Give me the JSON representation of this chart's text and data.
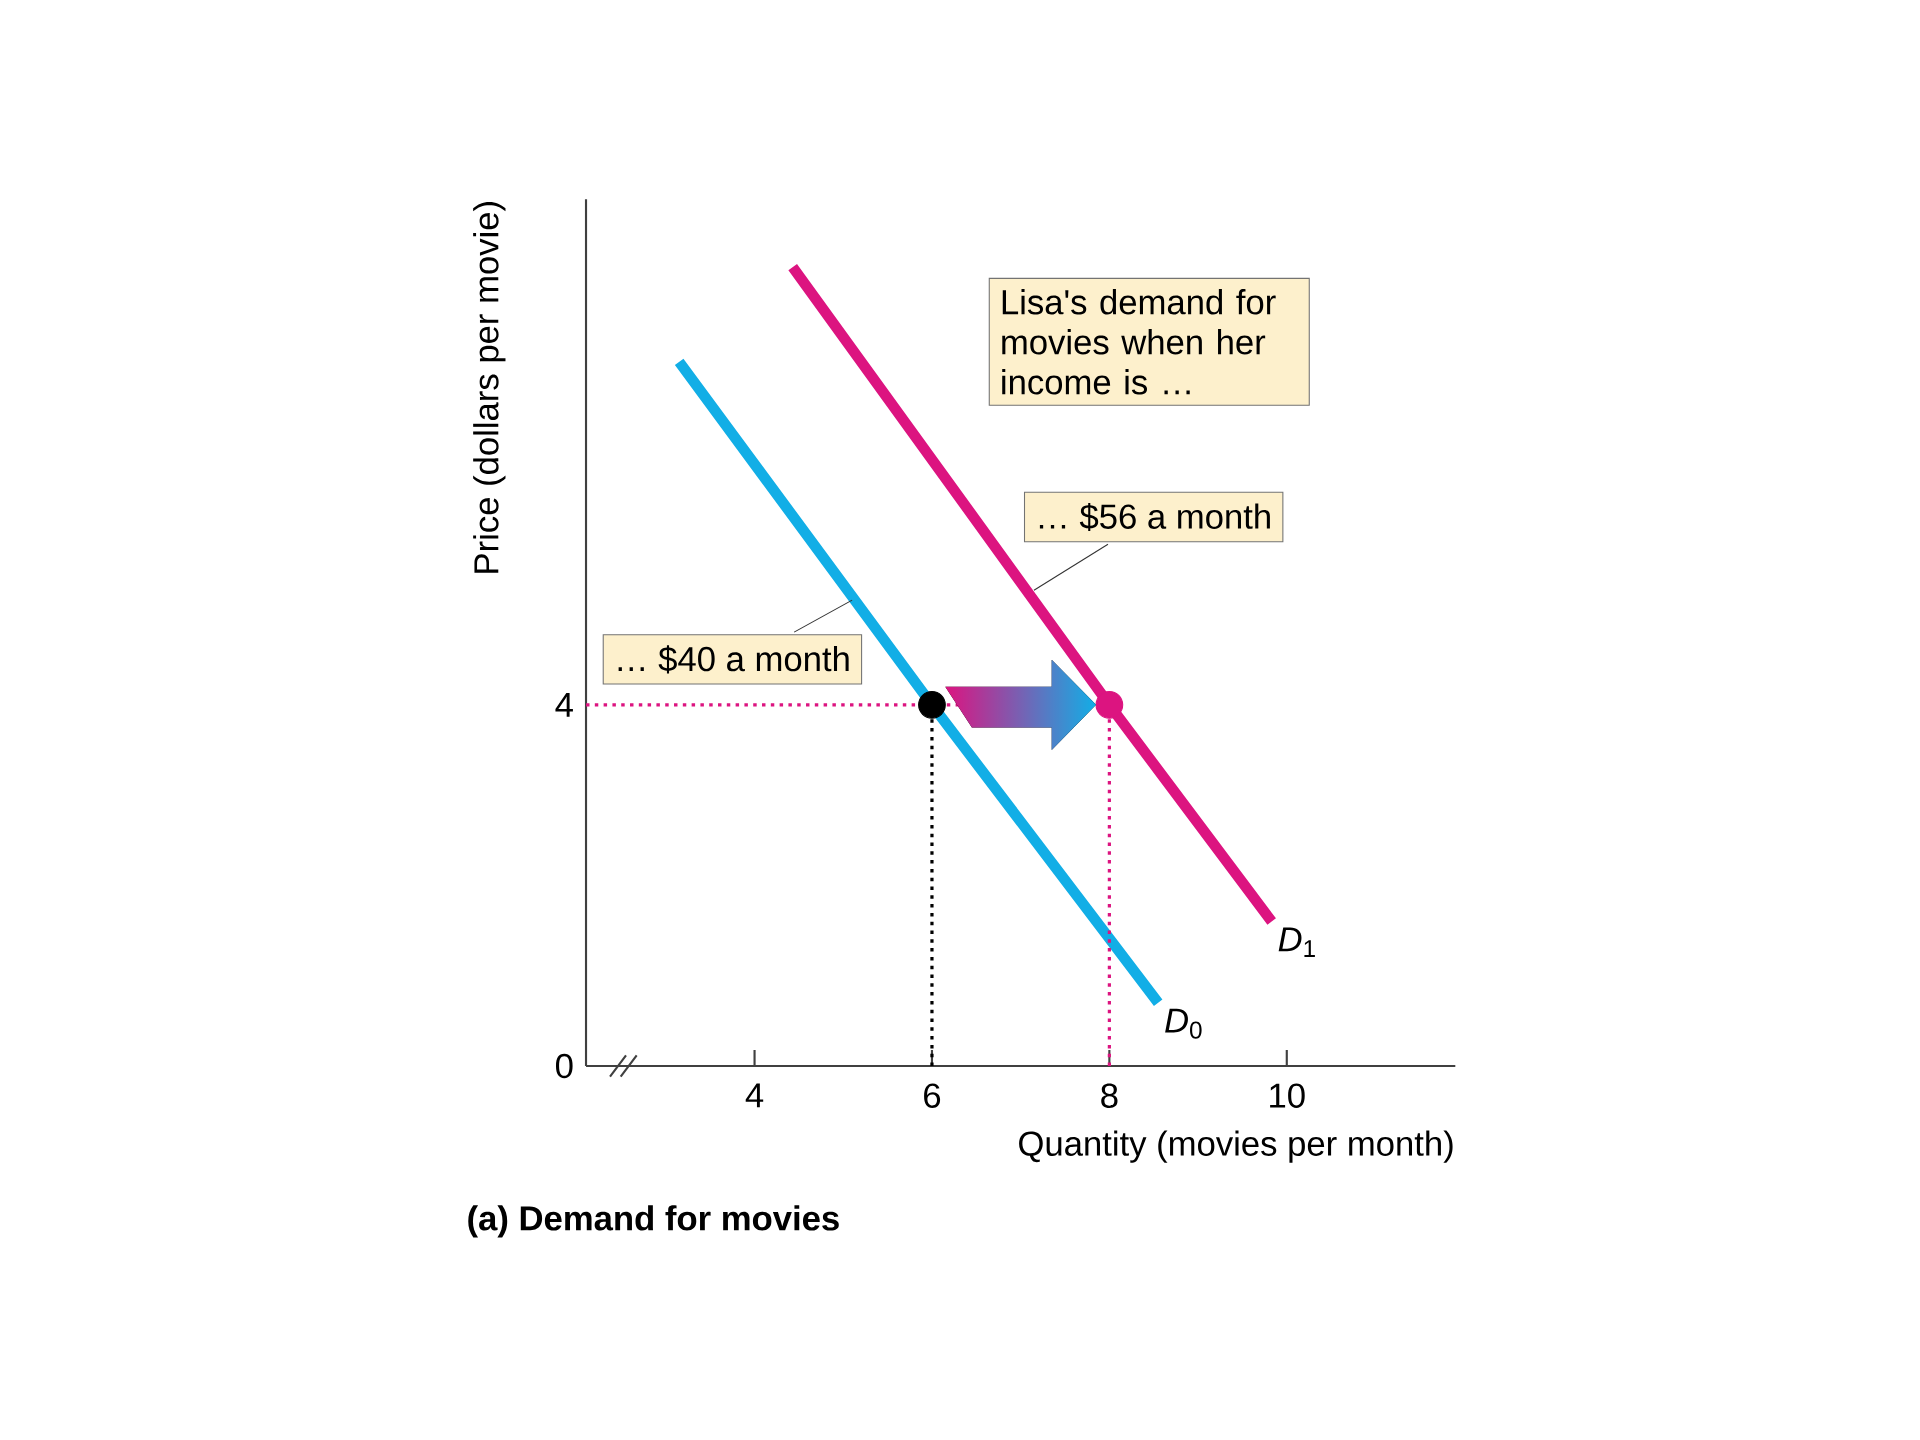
{
  "chart_data": {
    "type": "line",
    "title": "(a) Demand for movies",
    "xlabel": "Quantity (movies per month)",
    "ylabel": "Price (dollars per movie)",
    "xlim": [
      2.1,
      11.9
    ],
    "ylim": [
      0,
      9.6
    ],
    "xticks": [
      4,
      6,
      8,
      10
    ],
    "yticks": [
      0,
      4
    ],
    "series": [
      {
        "name": "*D*$_{0}$",
        "color": "#12aee6",
        "x": [
          3.15,
          6,
          8.55
        ],
        "values": [
          7.8,
          4,
          0.7
        ]
      },
      {
        "name": "*D*$_{1}$",
        "color": "#dc1480",
        "x": [
          4.43,
          8,
          9.83
        ],
        "values": [
          8.85,
          4,
          1.6
        ]
      },
      {
        "type": "line",
        "line_style": "dotted",
        "color": "#dc1480",
        "x": [
          2.1,
          8
        ],
        "values": [
          4,
          4
        ]
      },
      {
        "type": "line",
        "line_style": "dotted",
        "color": "#000000",
        "x": [
          6,
          6
        ],
        "values": [
          0,
          4
        ]
      },
      {
        "type": "line",
        "line_style": "dotted",
        "color": "#dc1480",
        "x": [
          8,
          8
        ],
        "values": [
          0,
          4
        ]
      },
      {
        "type": "scatter",
        "marker": "circle",
        "color": "#000000",
        "x": [
          6
        ],
        "values": [
          4
        ]
      },
      {
        "type": "scatter",
        "marker": "circle",
        "color": "#dc1480",
        "x": [
          8
        ],
        "values": [
          4
        ]
      }
    ],
    "annotations": [
      "Lisa's demand for movies when her income is …",
      {
        "text": "… $56 a month",
        "x": 7.15,
        "y": 5.27
      },
      {
        "text": "… $40 a month",
        "x": 5.1,
        "y": 5.16
      }
    ]
  }
}
